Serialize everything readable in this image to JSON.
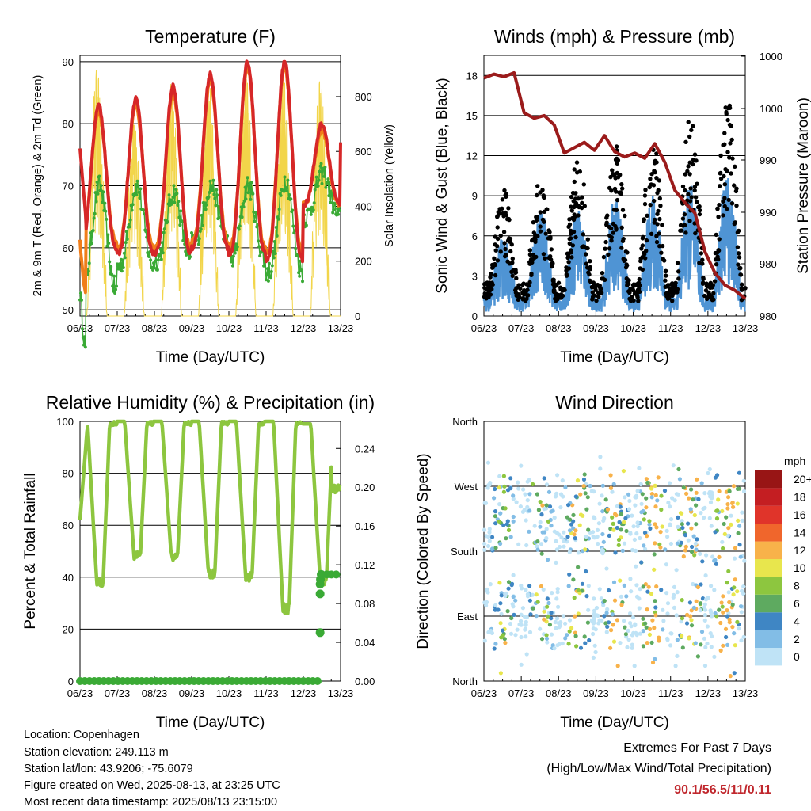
{
  "info": {
    "location": "Location: Copenhagen",
    "elevation": "Station elevation: 249.113 m",
    "latlon": "Station lat/lon: 43.9206; -75.6079",
    "created": "Figure created on Wed, 2025-08-13, at 23:25 UTC",
    "recent": "Most recent data timestamp: 2025/08/13 23:15:00"
  },
  "extremes": {
    "title": "Extremes For Past 7 Days",
    "subtitle": "(High/Low/Max Wind/Total Precipitation)",
    "values": "90.1/56.5/11/0.11"
  },
  "chart_data": [
    {
      "type": "line",
      "title": "Temperature (F)",
      "xlabel": "Time (Day/UTC)",
      "ylabel": "2m & 9m T (Red, Orange) & 2m Td (Green)",
      "y2label": "Solar Insolation (Yellow)",
      "x_ticks": [
        "06/23",
        "07/23",
        "08/23",
        "09/23",
        "10/23",
        "11/23",
        "12/23",
        "13/23"
      ],
      "ylim": [
        49,
        91
      ],
      "y_ticks": [
        50,
        60,
        70,
        80,
        90
      ],
      "y2lim": [
        0,
        950
      ],
      "y2_ticks": [
        0,
        200,
        400,
        600,
        800
      ],
      "series": [
        {
          "color": "#d62728",
          "daily_max": [
            83,
            84,
            86,
            88,
            90,
            90,
            80
          ],
          "daily_min": [
            60,
            59,
            59,
            60,
            59,
            58,
            67
          ],
          "start": 76,
          "end": 77
        },
        {
          "color": "#f07d1a",
          "daily_max": [
            82,
            83,
            85,
            87,
            89,
            89,
            79
          ],
          "daily_min": [
            61,
            60,
            60,
            61,
            60,
            59,
            67
          ]
        },
        {
          "color": "#3aaa35",
          "daily_max": [
            70,
            70,
            69,
            70,
            70,
            71,
            72
          ],
          "daily_min": [
            53,
            57,
            58,
            61,
            58,
            56,
            65
          ]
        },
        {
          "color": "#f2d54a",
          "daily_max": [
            900,
            700,
            850,
            860,
            880,
            880,
            860
          ]
        }
      ]
    },
    {
      "type": "line",
      "title": "Winds (mph) & Pressure (mb)",
      "xlabel": "Time (Day/UTC)",
      "ylabel": "Sonic Wind & Gust (Blue, Black)",
      "y2label": "Station Pressure (Maroon)",
      "x_ticks": [
        "06/23",
        "07/23",
        "08/23",
        "09/23",
        "10/23",
        "11/23",
        "12/23",
        "13/23"
      ],
      "ylim": [
        0,
        19.5
      ],
      "y_ticks": [
        0,
        3,
        6,
        9,
        12,
        15,
        18
      ],
      "y2_tick_labels": [
        "980",
        "980",
        "990",
        "990",
        "990",
        "1000",
        "1000"
      ],
      "series": [
        {
          "name": "Gust",
          "color": "#000000",
          "daily_peak": [
            9.5,
            10.5,
            12,
            13,
            13.5,
            15,
            17
          ]
        },
        {
          "name": "Wind",
          "color": "#4f94d4",
          "daily_peak": [
            6,
            8,
            8.5,
            9,
            9,
            10,
            11
          ]
        },
        {
          "name": "Pressure",
          "color": "#9b1b1b",
          "values": [
            17.8,
            18.1,
            17.9,
            18.2,
            15.2,
            14.8,
            15.0,
            14.3,
            12.2,
            12.6,
            13.0,
            12.4,
            13.5,
            12.3,
            11.9,
            12.2,
            11.8,
            12.9,
            11.5,
            9.4,
            8.5,
            7.7,
            4.8,
            3.2,
            2.3,
            1.9,
            1.3
          ]
        }
      ]
    },
    {
      "type": "line",
      "title": "Relative Humidity (%) & Precipitation (in)",
      "xlabel": "Time (Day/UTC)",
      "ylabel": "Percent & Total Rainfall",
      "x_ticks": [
        "06/23",
        "07/23",
        "08/23",
        "09/23",
        "10/23",
        "11/23",
        "12/23",
        "13/23"
      ],
      "ylim": [
        0,
        100
      ],
      "y_ticks": [
        0,
        20,
        40,
        60,
        80,
        100
      ],
      "y2_ticks": [
        "0.00",
        "0.04",
        "0.08",
        "0.12",
        "0.16",
        "0.20",
        "0.24"
      ],
      "series": [
        {
          "name": "Relative Humidity",
          "color": "#8dc63f",
          "daily_max": [
            100,
            100,
            100,
            100,
            100,
            100,
            99
          ],
          "daily_min": [
            38,
            48,
            48,
            41,
            40,
            28,
            39
          ],
          "start": 62,
          "end": 74
        },
        {
          "name": "Precipitation",
          "color": "#3aaa35",
          "values_in": [
            0,
            0,
            0,
            0,
            0,
            0,
            0.05,
            0.11
          ]
        }
      ]
    },
    {
      "type": "scatter",
      "title": "Wind Direction",
      "xlabel": "Time (Day/UTC)",
      "ylabel": "Direction (Colored By Speed)",
      "x_ticks": [
        "06/23",
        "07/23",
        "08/23",
        "09/23",
        "10/23",
        "11/23",
        "12/23",
        "13/23"
      ],
      "y_ticks": [
        "North",
        "East",
        "South",
        "West",
        "North"
      ],
      "colorbar": {
        "unit": "mph",
        "labels": [
          "0",
          "2",
          "4",
          "6",
          "8",
          "10",
          "12",
          "14",
          "16",
          "18",
          "20+"
        ],
        "colors": [
          "#bfe3f6",
          "#82bde6",
          "#3f86c4",
          "#5eaa60",
          "#8dc63f",
          "#e8e64d",
          "#f8b24a",
          "#f0662c",
          "#e0342a",
          "#c41e22",
          "#981515"
        ]
      }
    }
  ]
}
